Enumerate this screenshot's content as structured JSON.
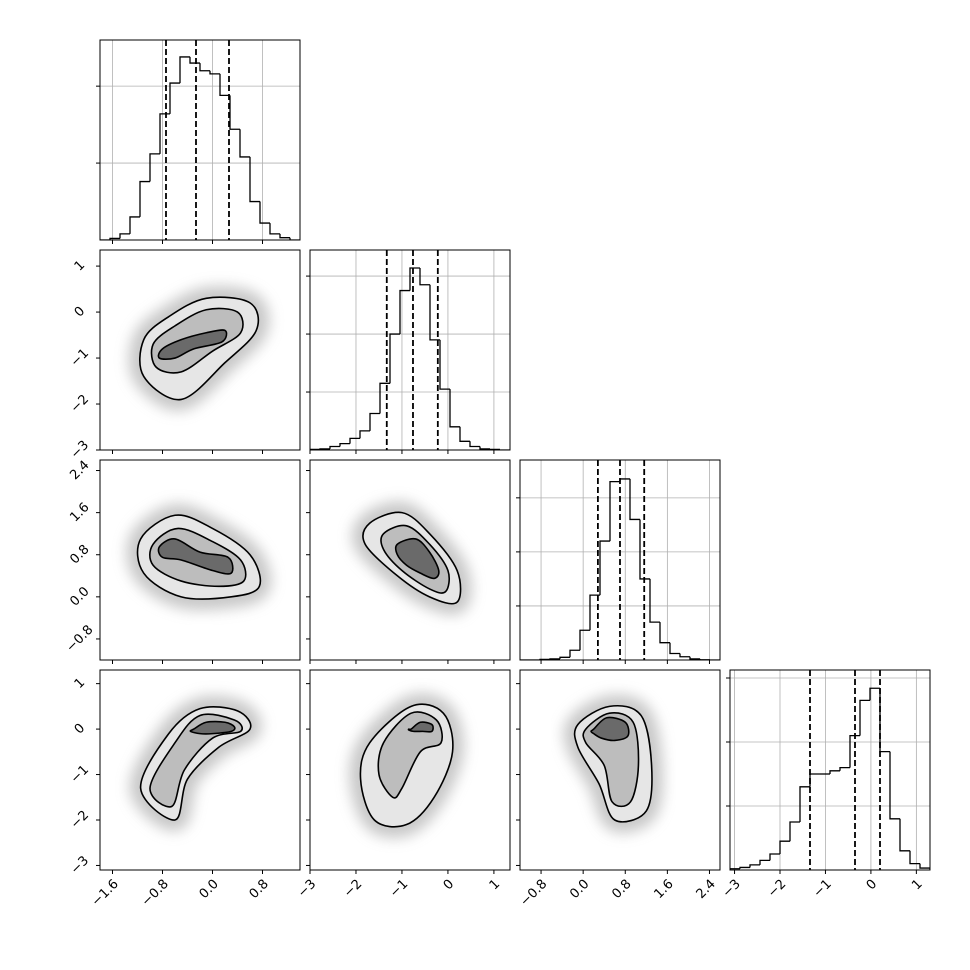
{
  "chart_data": {
    "type": "corner",
    "color": "#000000",
    "level_colors": [
      "#e6e6e6",
      "#bdbdbd",
      "#6a6a6a"
    ],
    "grid": true,
    "variables": [
      {
        "lim": [
          -1.8,
          1.4
        ],
        "ticks": [
          {
            "value": -1.6,
            "label": "−1.6"
          },
          {
            "value": -0.8,
            "label": "−0.8"
          },
          {
            "value": 0,
            "label": "0.0"
          },
          0.8
        ]
      },
      {
        "lim": [
          -3.0,
          1.35
        ],
        "ticks": [
          {
            "value": -3,
            "label": "−3"
          },
          {
            "value": -2,
            "label": "−2"
          },
          {
            "value": -1,
            "label": "−1"
          },
          0,
          1
        ]
      },
      {
        "lim": [
          -1.2,
          2.6
        ],
        "ticks": [
          {
            "value": -0.8,
            "label": "−0.8"
          },
          {
            "value": 0,
            "label": "0.0"
          },
          0.8,
          1.6,
          2.4
        ]
      },
      {
        "lim": [
          -3.1,
          1.3
        ],
        "ticks": [
          {
            "value": -3,
            "label": "−3"
          },
          {
            "value": -2,
            "label": "−2"
          },
          {
            "value": -1,
            "label": "−1"
          },
          0,
          1
        ]
      }
    ],
    "histograms": [
      {
        "bins": [
          -1.8,
          -1.64,
          -1.48,
          -1.32,
          -1.16,
          -1.0,
          -0.84,
          -0.68,
          -0.52,
          -0.36,
          -0.2,
          -0.04,
          0.12,
          0.28,
          0.44,
          0.6,
          0.76,
          0.92,
          1.08,
          1.24,
          1.4
        ],
        "values": [
          0,
          10,
          40,
          150,
          380,
          560,
          820,
          1020,
          1190,
          1150,
          1100,
          1080,
          940,
          720,
          540,
          250,
          110,
          40,
          15,
          0
        ],
        "quantiles": [
          -0.744,
          -0.264,
          0.264
        ],
        "ylim": [
          0,
          1300
        ],
        "yticks": [
          500,
          1000
        ]
      },
      {
        "bins": [
          -3,
          -2.7825,
          -2.565,
          -2.3475,
          -2.13,
          -1.9125,
          -1.695,
          -1.4775,
          -1.26,
          -1.0425,
          -0.825,
          -0.6075,
          -0.39,
          -0.1725,
          0.045,
          0.2625,
          0.48,
          0.6975,
          0.915,
          1.1325,
          1.35
        ],
        "values": [
          10,
          20,
          60,
          110,
          200,
          330,
          630,
          1150,
          2000,
          2750,
          3140,
          2850,
          1900,
          1050,
          400,
          150,
          60,
          20,
          10,
          0
        ],
        "quantiles": [
          -1.33,
          -0.76,
          -0.22
        ],
        "ylim": [
          0,
          3450
        ],
        "yticks": [
          1000,
          2000,
          3000
        ]
      },
      {
        "bins": [
          -1.2,
          -1.01,
          -0.82,
          -0.63,
          -0.44,
          -0.25,
          -0.06,
          0.13,
          0.32,
          0.51,
          0.7,
          0.89,
          1.08,
          1.27,
          1.46,
          1.65,
          1.84,
          2.03,
          2.22,
          2.41,
          2.6
        ],
        "values": [
          0,
          0,
          10,
          20,
          50,
          180,
          550,
          1200,
          2200,
          3300,
          3350,
          2600,
          1500,
          700,
          320,
          120,
          60,
          20,
          5,
          0
        ],
        "quantiles": [
          0.28,
          0.7,
          1.16
        ],
        "ylim": [
          0,
          3700
        ],
        "yticks": [
          1000,
          2000,
          3000
        ]
      },
      {
        "bins": [
          -3.1,
          -2.88,
          -2.66,
          -2.44,
          -2.22,
          -2.0,
          -1.78,
          -1.56,
          -1.34,
          -1.12,
          -0.9,
          -0.68,
          -0.46,
          -0.24,
          -0.02,
          0.2,
          0.42,
          0.64,
          0.86,
          1.08,
          1.3
        ],
        "values": [
          20,
          40,
          80,
          150,
          250,
          450,
          750,
          1300,
          1500,
          1500,
          1550,
          1600,
          2100,
          2650,
          2840,
          1850,
          800,
          300,
          100,
          30
        ],
        "quantiles": [
          -1.34,
          -0.35,
          0.2
        ],
        "ylim": [
          0,
          3125
        ],
        "yticks": [
          1000,
          2000,
          3000
        ]
      }
    ],
    "panels": [
      {
        "contours": [
          {
            "x": [
              -1.1,
              -0.7,
              -0.1,
              0.6,
              0.7,
              0.2,
              -0.5,
              -1.1
            ],
            "y": [
              -0.6,
              -0.1,
              0.3,
              0.2,
              -0.4,
              -1.1,
              -1.9,
              -1.4
            ]
          },
          {
            "x": [
              -0.95,
              -0.6,
              -0.1,
              0.4,
              0.45,
              0.0,
              -0.5,
              -0.9
            ],
            "y": [
              -0.7,
              -0.3,
              0.05,
              0.0,
              -0.45,
              -0.85,
              -1.3,
              -1.2
            ]
          },
          {
            "x": [
              -0.8,
              -0.5,
              -0.1,
              0.2,
              0.15,
              -0.3,
              -0.6,
              -0.85
            ],
            "y": [
              -0.8,
              -0.6,
              -0.45,
              -0.4,
              -0.65,
              -0.8,
              -1.0,
              -1.0
            ]
          }
        ]
      },
      {
        "contours": [
          {
            "x": [
              -1.15,
              -0.6,
              0.0,
              0.6,
              0.75,
              0.3,
              -0.5,
              -1.1
            ],
            "y": [
              1.1,
              1.55,
              1.3,
              0.8,
              0.2,
              0.0,
              0.0,
              0.45
            ]
          },
          {
            "x": [
              -0.95,
              -0.55,
              0.0,
              0.45,
              0.5,
              0.1,
              -0.5,
              -0.95
            ],
            "y": [
              1.0,
              1.3,
              1.05,
              0.7,
              0.3,
              0.2,
              0.3,
              0.6
            ]
          },
          {
            "x": [
              -0.85,
              -0.6,
              -0.2,
              0.25,
              0.3,
              0.0,
              -0.5,
              -0.8
            ],
            "y": [
              0.95,
              1.1,
              0.85,
              0.75,
              0.45,
              0.5,
              0.7,
              0.75
            ]
          }
        ]
      },
      {
        "contours": [
          {
            "x": [
              -1.7,
              -1.0,
              -0.4,
              0.2,
              0.2,
              -0.4,
              -1.1,
              -1.8
            ],
            "y": [
              1.4,
              1.6,
              1.2,
              0.5,
              -0.1,
              0.0,
              0.4,
              1.0
            ]
          },
          {
            "x": [
              -1.4,
              -0.9,
              -0.4,
              0.0,
              -0.05,
              -0.4,
              -1.0,
              -1.4
            ],
            "y": [
              1.2,
              1.35,
              1.0,
              0.5,
              0.1,
              0.15,
              0.5,
              0.9
            ]
          },
          {
            "x": [
              -1.1,
              -0.7,
              -0.4,
              -0.2,
              -0.3,
              -0.6,
              -0.9,
              -1.1
            ],
            "y": [
              1.0,
              1.1,
              0.85,
              0.5,
              0.35,
              0.45,
              0.6,
              0.8
            ]
          }
        ]
      },
      {
        "contours": [
          {
            "x": [
              -0.7,
              -0.2,
              0.4,
              0.6,
              0.1,
              -0.4,
              -0.6,
              -1.15
            ],
            "y": [
              -0.1,
              0.45,
              0.4,
              0.0,
              -0.4,
              -1.1,
              -2.0,
              -1.3
            ]
          },
          {
            "x": [
              -0.6,
              -0.2,
              0.35,
              0.45,
              0.0,
              -0.45,
              -0.65,
              -1.0
            ],
            "y": [
              -0.3,
              0.3,
              0.2,
              -0.05,
              -0.2,
              -0.9,
              -1.7,
              -1.3
            ]
          },
          {
            "x": [
              -0.3,
              -0.1,
              0.2,
              0.35,
              0.3,
              0.0,
              -0.2,
              -0.35
            ],
            "y": [
              0.0,
              0.15,
              0.15,
              0.05,
              -0.05,
              -0.1,
              -0.1,
              -0.05
            ]
          }
        ]
      },
      {
        "contours": [
          {
            "x": [
              -1.7,
              -0.8,
              -0.1,
              0.1,
              -0.3,
              -0.9,
              -1.6,
              -1.9
            ],
            "y": [
              -0.3,
              0.5,
              0.35,
              -0.5,
              -1.5,
              -2.1,
              -2.0,
              -1.1
            ]
          },
          {
            "x": [
              -1.4,
              -0.8,
              -0.25,
              -0.15,
              -0.6,
              -1.0,
              -1.2,
              -1.5
            ],
            "y": [
              -0.3,
              0.35,
              0.2,
              -0.3,
              -0.5,
              -1.3,
              -1.5,
              -1.0
            ]
          },
          {
            "x": [
              -0.8,
              -0.6,
              -0.35,
              -0.35,
              -0.55,
              -0.75,
              -0.85,
              -0.85
            ],
            "y": [
              0.0,
              0.15,
              0.1,
              -0.05,
              -0.05,
              -0.05,
              -0.02,
              0.0
            ]
          }
        ]
      },
      {
        "contours": [
          {
            "x": [
              -0.1,
              0.5,
              1.1,
              1.3,
              1.2,
              0.6,
              0.3,
              -0.1
            ],
            "y": [
              0.1,
              0.5,
              0.3,
              -0.8,
              -1.8,
              -2.0,
              -1.2,
              -0.4
            ]
          },
          {
            "x": [
              0.05,
              0.5,
              0.95,
              1.05,
              0.9,
              0.55,
              0.4,
              0.05
            ],
            "y": [
              0.0,
              0.35,
              0.15,
              -0.8,
              -1.6,
              -1.6,
              -0.8,
              -0.3
            ]
          },
          {
            "x": [
              0.2,
              0.45,
              0.8,
              0.85,
              0.6,
              0.35,
              0.2,
              0.15
            ],
            "y": [
              0.0,
              0.25,
              0.15,
              -0.15,
              -0.25,
              -0.2,
              -0.1,
              -0.05
            ]
          }
        ]
      }
    ]
  }
}
